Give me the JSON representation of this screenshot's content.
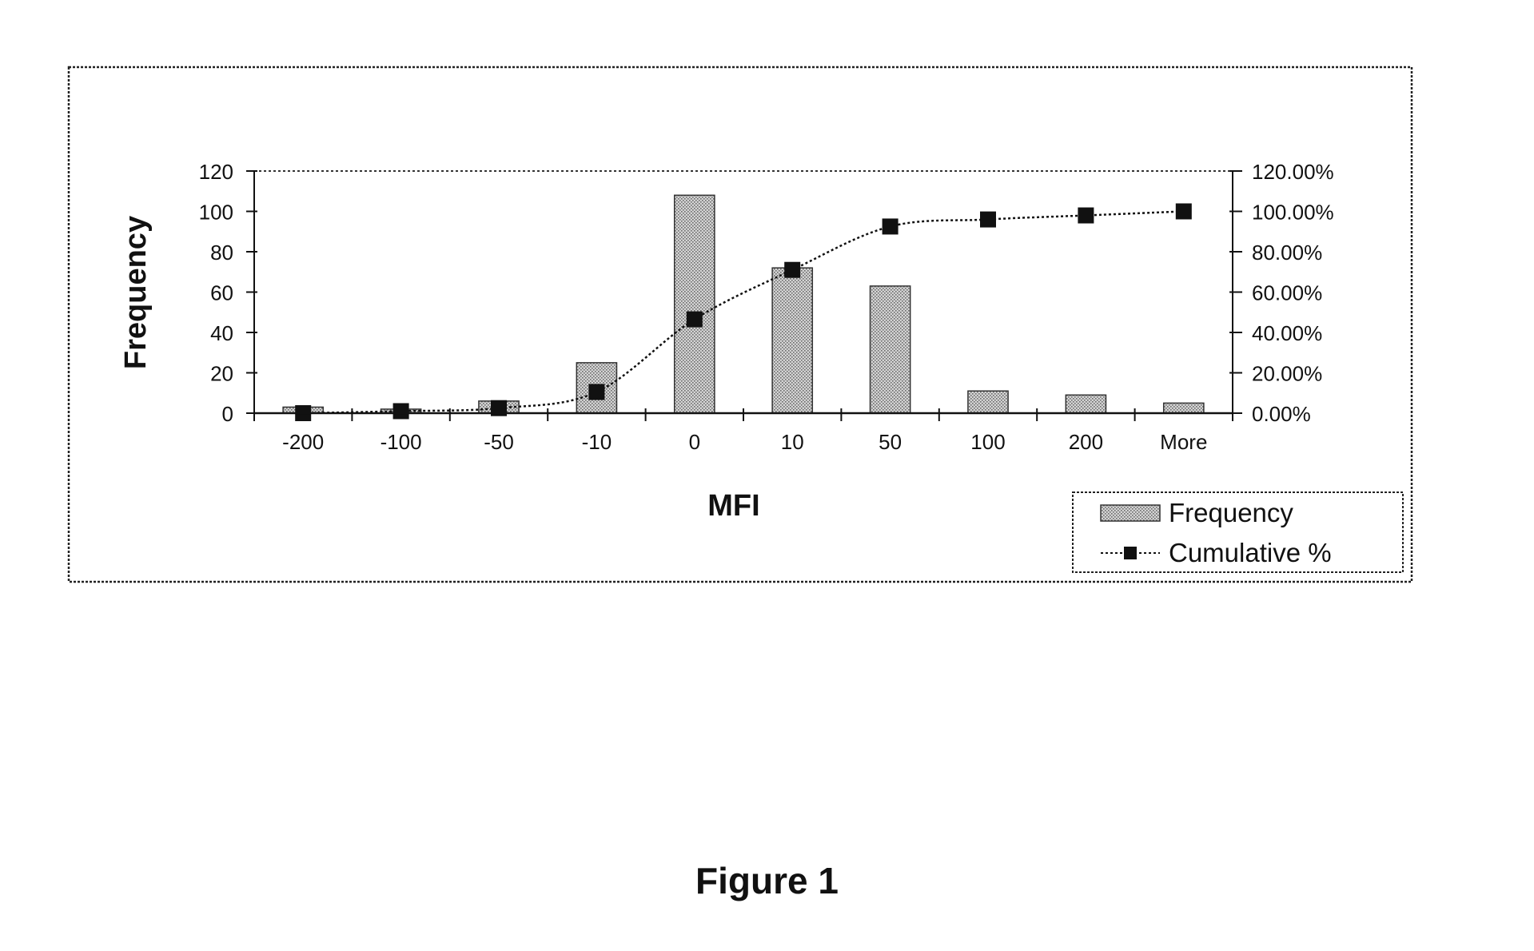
{
  "caption": "Figure 1",
  "chart_data": {
    "type": "bar",
    "categories": [
      "-200",
      "-100",
      "-50",
      "-10",
      "0",
      "10",
      "50",
      "100",
      "200",
      "More"
    ],
    "xlabel": "MFI",
    "ylabel": "Frequency",
    "ylim": [
      0,
      120
    ],
    "y_ticks": [
      "0",
      "20",
      "40",
      "60",
      "80",
      "100",
      "120"
    ],
    "y2lim": [
      0,
      120
    ],
    "y2_ticks": [
      "0.00%",
      "20.00%",
      "40.00%",
      "60.00%",
      "80.00%",
      "100.00%",
      "120.00%"
    ],
    "grid": false,
    "legend_position": "bottom-right",
    "series": [
      {
        "name": "Frequency",
        "kind": "bar",
        "axis": "left",
        "values": [
          3,
          2,
          6,
          25,
          108,
          72,
          63,
          11,
          9,
          5
        ]
      },
      {
        "name": "Cumulative %",
        "kind": "line",
        "axis": "right",
        "marker": "square",
        "values": [
          0.0,
          1.0,
          2.5,
          10.5,
          46.5,
          71.0,
          92.5,
          96.0,
          98.0,
          100.0
        ]
      }
    ],
    "colors": {
      "bar_fill": "#bdbdbd",
      "line": "#111111",
      "frame": "#222222"
    }
  }
}
